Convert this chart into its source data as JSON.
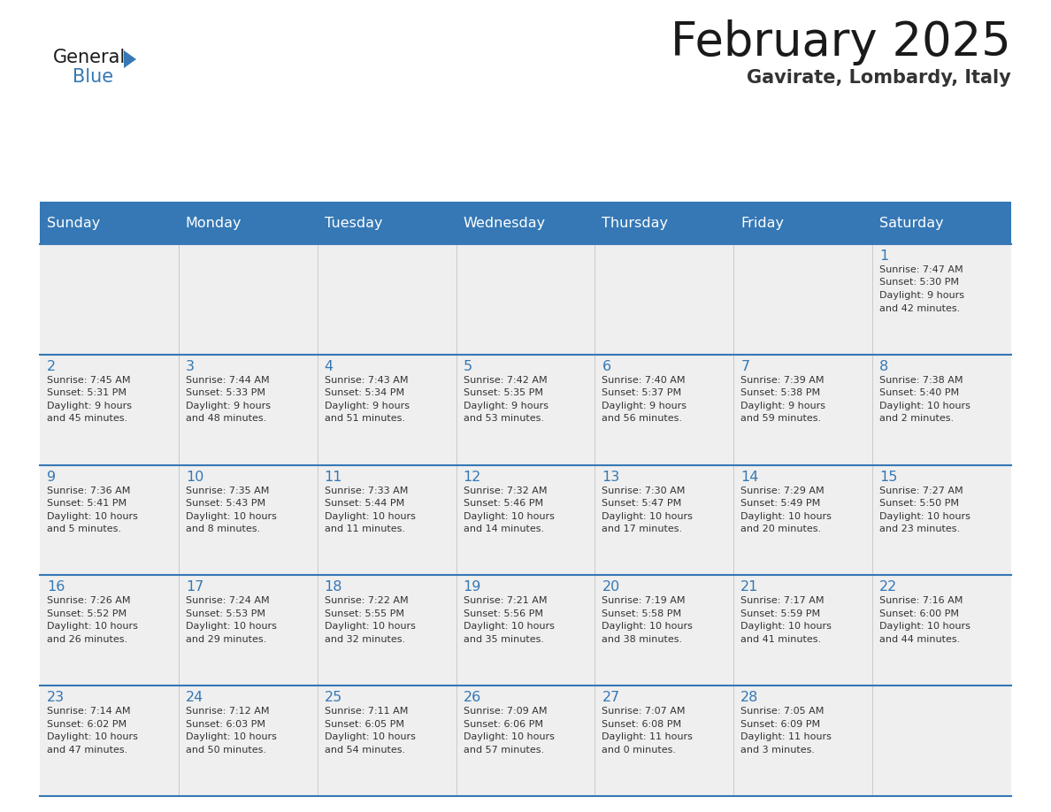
{
  "title": "February 2025",
  "subtitle": "Gavirate, Lombardy, Italy",
  "header_color": "#3578b5",
  "header_text_color": "#ffffff",
  "cell_bg_color": "#efefef",
  "day_number_color": "#3578b5",
  "text_color": "#333333",
  "border_color": "#3578b5",
  "days_of_week": [
    "Sunday",
    "Monday",
    "Tuesday",
    "Wednesday",
    "Thursday",
    "Friday",
    "Saturday"
  ],
  "weeks": [
    [
      {
        "day": null,
        "info": null
      },
      {
        "day": null,
        "info": null
      },
      {
        "day": null,
        "info": null
      },
      {
        "day": null,
        "info": null
      },
      {
        "day": null,
        "info": null
      },
      {
        "day": null,
        "info": null
      },
      {
        "day": 1,
        "info": "Sunrise: 7:47 AM\nSunset: 5:30 PM\nDaylight: 9 hours\nand 42 minutes."
      }
    ],
    [
      {
        "day": 2,
        "info": "Sunrise: 7:45 AM\nSunset: 5:31 PM\nDaylight: 9 hours\nand 45 minutes."
      },
      {
        "day": 3,
        "info": "Sunrise: 7:44 AM\nSunset: 5:33 PM\nDaylight: 9 hours\nand 48 minutes."
      },
      {
        "day": 4,
        "info": "Sunrise: 7:43 AM\nSunset: 5:34 PM\nDaylight: 9 hours\nand 51 minutes."
      },
      {
        "day": 5,
        "info": "Sunrise: 7:42 AM\nSunset: 5:35 PM\nDaylight: 9 hours\nand 53 minutes."
      },
      {
        "day": 6,
        "info": "Sunrise: 7:40 AM\nSunset: 5:37 PM\nDaylight: 9 hours\nand 56 minutes."
      },
      {
        "day": 7,
        "info": "Sunrise: 7:39 AM\nSunset: 5:38 PM\nDaylight: 9 hours\nand 59 minutes."
      },
      {
        "day": 8,
        "info": "Sunrise: 7:38 AM\nSunset: 5:40 PM\nDaylight: 10 hours\nand 2 minutes."
      }
    ],
    [
      {
        "day": 9,
        "info": "Sunrise: 7:36 AM\nSunset: 5:41 PM\nDaylight: 10 hours\nand 5 minutes."
      },
      {
        "day": 10,
        "info": "Sunrise: 7:35 AM\nSunset: 5:43 PM\nDaylight: 10 hours\nand 8 minutes."
      },
      {
        "day": 11,
        "info": "Sunrise: 7:33 AM\nSunset: 5:44 PM\nDaylight: 10 hours\nand 11 minutes."
      },
      {
        "day": 12,
        "info": "Sunrise: 7:32 AM\nSunset: 5:46 PM\nDaylight: 10 hours\nand 14 minutes."
      },
      {
        "day": 13,
        "info": "Sunrise: 7:30 AM\nSunset: 5:47 PM\nDaylight: 10 hours\nand 17 minutes."
      },
      {
        "day": 14,
        "info": "Sunrise: 7:29 AM\nSunset: 5:49 PM\nDaylight: 10 hours\nand 20 minutes."
      },
      {
        "day": 15,
        "info": "Sunrise: 7:27 AM\nSunset: 5:50 PM\nDaylight: 10 hours\nand 23 minutes."
      }
    ],
    [
      {
        "day": 16,
        "info": "Sunrise: 7:26 AM\nSunset: 5:52 PM\nDaylight: 10 hours\nand 26 minutes."
      },
      {
        "day": 17,
        "info": "Sunrise: 7:24 AM\nSunset: 5:53 PM\nDaylight: 10 hours\nand 29 minutes."
      },
      {
        "day": 18,
        "info": "Sunrise: 7:22 AM\nSunset: 5:55 PM\nDaylight: 10 hours\nand 32 minutes."
      },
      {
        "day": 19,
        "info": "Sunrise: 7:21 AM\nSunset: 5:56 PM\nDaylight: 10 hours\nand 35 minutes."
      },
      {
        "day": 20,
        "info": "Sunrise: 7:19 AM\nSunset: 5:58 PM\nDaylight: 10 hours\nand 38 minutes."
      },
      {
        "day": 21,
        "info": "Sunrise: 7:17 AM\nSunset: 5:59 PM\nDaylight: 10 hours\nand 41 minutes."
      },
      {
        "day": 22,
        "info": "Sunrise: 7:16 AM\nSunset: 6:00 PM\nDaylight: 10 hours\nand 44 minutes."
      }
    ],
    [
      {
        "day": 23,
        "info": "Sunrise: 7:14 AM\nSunset: 6:02 PM\nDaylight: 10 hours\nand 47 minutes."
      },
      {
        "day": 24,
        "info": "Sunrise: 7:12 AM\nSunset: 6:03 PM\nDaylight: 10 hours\nand 50 minutes."
      },
      {
        "day": 25,
        "info": "Sunrise: 7:11 AM\nSunset: 6:05 PM\nDaylight: 10 hours\nand 54 minutes."
      },
      {
        "day": 26,
        "info": "Sunrise: 7:09 AM\nSunset: 6:06 PM\nDaylight: 10 hours\nand 57 minutes."
      },
      {
        "day": 27,
        "info": "Sunrise: 7:07 AM\nSunset: 6:08 PM\nDaylight: 11 hours\nand 0 minutes."
      },
      {
        "day": 28,
        "info": "Sunrise: 7:05 AM\nSunset: 6:09 PM\nDaylight: 11 hours\nand 3 minutes."
      },
      {
        "day": null,
        "info": null
      }
    ]
  ],
  "logo_general_color": "#1a1a1a",
  "logo_blue_color": "#3578b5",
  "logo_triangle_color": "#3578b5"
}
